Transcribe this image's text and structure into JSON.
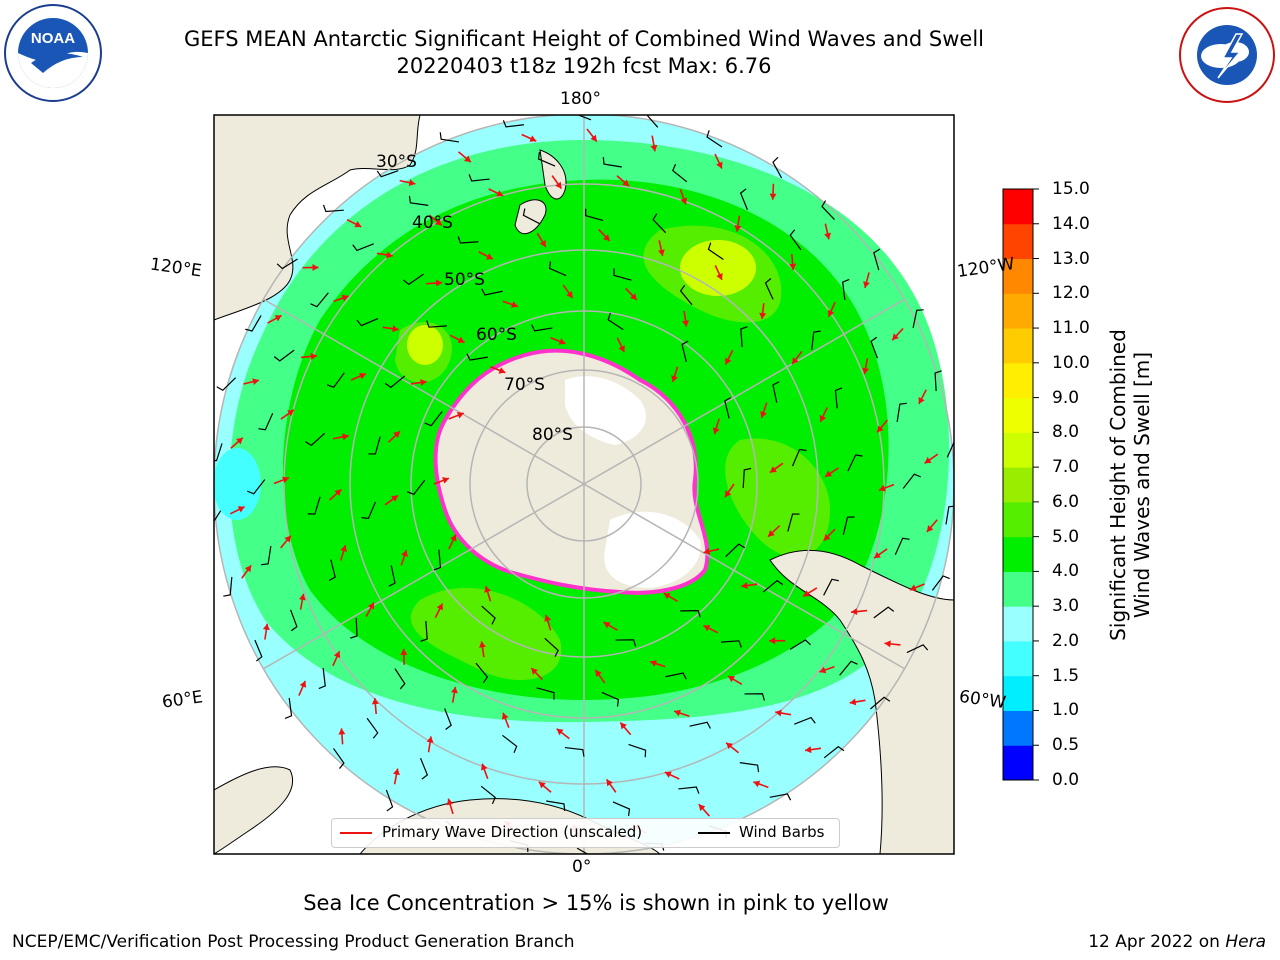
{
  "header": {
    "title_line1": "GEFS MEAN Antarctic Significant Height of Combined Wind Waves and Swell",
    "title_line2": "20220403 t18z 192h fcst   Max: 6.76"
  },
  "logos": {
    "noaa_text": "NOAA",
    "noaa_ring_text": "NATIONAL OCEANIC AND ATMOSPHERIC ADMINISTRATION · U.S. DEPARTMENT OF COMMERCE",
    "nws_ring_text": "NATIONAL WEATHER SERVICE"
  },
  "map": {
    "longitude_labels": {
      "top": "180°",
      "bottom": "0°",
      "left_upper": "120°E",
      "left_lower": "60°E",
      "right_upper": "120°W",
      "right_lower": "60°W"
    },
    "latitude_labels": [
      "30°S",
      "40°S",
      "50°S",
      "60°S",
      "70°S",
      "80°S"
    ],
    "legend": {
      "wave_direction": "Primary Wave Direction (unscaled)",
      "wind_barbs": "Wind Barbs"
    },
    "colors": {
      "land": "#efebdc",
      "ice_edge": "#ff33cc",
      "arrow": "#ee1111",
      "grid": "#b5b5b5"
    }
  },
  "colorbar": {
    "label_line1": "Significant Height of Combined",
    "label_line2": "Wind Waves and Swell [m]",
    "ticks": [
      "0.0",
      "0.5",
      "1.0",
      "1.5",
      "2.0",
      "3.0",
      "4.0",
      "5.0",
      "6.0",
      "7.0",
      "8.0",
      "9.0",
      "10.0",
      "11.0",
      "12.0",
      "13.0",
      "14.0",
      "15.0"
    ],
    "colors": [
      "#0000ff",
      "#0077ff",
      "#00eeff",
      "#44ffff",
      "#99ffff",
      "#44ff88",
      "#00ee00",
      "#55ee00",
      "#99ee00",
      "#ccff00",
      "#eeff00",
      "#ffee00",
      "#ffcc00",
      "#ffaa00",
      "#ff8800",
      "#ff4400",
      "#ff0000"
    ]
  },
  "footer": {
    "note": "Sea Ice Concentration > 15% is shown in pink to yellow",
    "branch": "NCEP/EMC/Verification Post Processing Product Generation Branch",
    "date": "12 Apr 2022 on",
    "host": "Hera"
  }
}
